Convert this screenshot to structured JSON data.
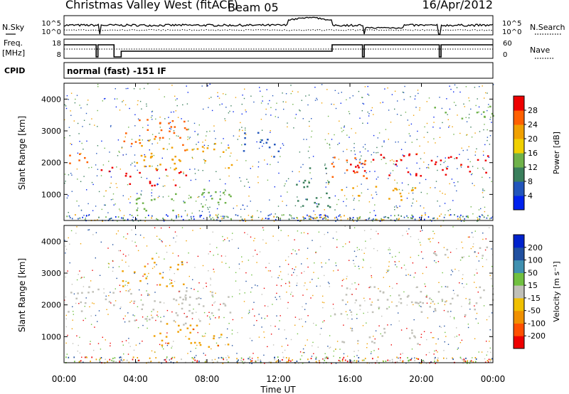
{
  "header": {
    "station": "Christmas Valley West (fitACF)",
    "beam": "Beam 05",
    "date": "16/Apr/2012"
  },
  "noise_panel": {
    "left_label": "N.Sky",
    "right_label": "N.Search",
    "left_ticks": [
      "10^5",
      "10^0"
    ],
    "right_ticks": [
      "10^5",
      "10^0"
    ]
  },
  "freq_panel": {
    "left_label": "Freq.",
    "left_unit": "[MHz]",
    "right_label": "Nave",
    "left_ticks": [
      "18",
      "8"
    ],
    "right_ticks": [
      "60",
      "0"
    ]
  },
  "cpid_panel": {
    "label": "CPID",
    "text": "normal (fast) -151 IF"
  },
  "chart_data": [
    {
      "type": "heatmap",
      "name": "power",
      "ylabel": "Slant Range [km]",
      "y_ticks": [
        1000,
        2000,
        3000,
        4000
      ],
      "ylim": [
        180,
        4500
      ],
      "xlim": [
        0,
        24
      ],
      "colorbar": {
        "label": "Power [dB]",
        "ticks": [
          "4",
          "8",
          "12",
          "16",
          "20",
          "24",
          "28"
        ],
        "colors": [
          "#0022ee",
          "#2255bb",
          "#3a7f5c",
          "#6fb24a",
          "#f0d000",
          "#f0a000",
          "#ff6000",
          "#ee0000"
        ]
      },
      "bands": [
        {
          "x0": 0.0,
          "x1": 1.8,
          "y0": 1850,
          "y1": 2300,
          "c": "#ff6000"
        },
        {
          "x0": 1.9,
          "x1": 2.8,
          "y0": 1700,
          "y1": 2200,
          "c": "#ee0000"
        },
        {
          "x0": 3.2,
          "x1": 6.8,
          "y0": 1300,
          "y1": 1900,
          "c": "#ee0000"
        },
        {
          "x0": 3.3,
          "x1": 7.0,
          "y0": 2400,
          "y1": 3400,
          "c": "#ff6000"
        },
        {
          "x0": 4.0,
          "x1": 9.5,
          "y0": 1800,
          "y1": 2800,
          "c": "#f0a000"
        },
        {
          "x0": 4.0,
          "x1": 9.5,
          "y0": 500,
          "y1": 1200,
          "c": "#6fb24a"
        },
        {
          "x0": 10.0,
          "x1": 12.0,
          "y0": 2200,
          "y1": 3100,
          "c": "#2255bb"
        },
        {
          "x0": 12.8,
          "x1": 15.0,
          "y0": 600,
          "y1": 1900,
          "c": "#3a7f5c"
        },
        {
          "x0": 14.8,
          "x1": 17.0,
          "y0": 1500,
          "y1": 2300,
          "c": "#ff6000"
        },
        {
          "x0": 15.5,
          "x1": 20.0,
          "y0": 800,
          "y1": 1300,
          "c": "#f0a000"
        },
        {
          "x0": 16.0,
          "x1": 24.0,
          "y0": 1600,
          "y1": 2300,
          "c": "#ee0000"
        },
        {
          "x0": 20.5,
          "x1": 24.0,
          "y0": 3400,
          "y1": 3800,
          "c": "#6fb24a"
        }
      ]
    },
    {
      "type": "heatmap",
      "name": "velocity",
      "ylabel": "Slant Range [km]",
      "y_ticks": [
        1000,
        2000,
        3000,
        4000
      ],
      "ylim": [
        180,
        4500
      ],
      "xlim": [
        0,
        24
      ],
      "xlabel": "Time UT",
      "x_ticks": [
        "00:00",
        "04:00",
        "08:00",
        "12:00",
        "16:00",
        "20:00",
        "00:00"
      ],
      "colorbar": {
        "label": "Velocity [m s⁻¹]",
        "ticks": [
          "-200",
          "-100",
          "-50",
          "-15",
          "15",
          "50",
          "100",
          "200"
        ],
        "colors": [
          "#ee0000",
          "#ff5000",
          "#f09000",
          "#f0c000",
          "#c0c0b8",
          "#70c040",
          "#4090b0",
          "#2050a0",
          "#0022cc"
        ]
      },
      "bands": [
        {
          "x0": 0.0,
          "x1": 2.8,
          "y0": 1800,
          "y1": 2600,
          "c": "#c0c0b8"
        },
        {
          "x0": 3.2,
          "x1": 6.8,
          "y0": 2600,
          "y1": 3500,
          "c": "#f0a000"
        },
        {
          "x0": 3.2,
          "x1": 9.5,
          "y0": 1400,
          "y1": 2500,
          "c": "#c0c0b8"
        },
        {
          "x0": 5.0,
          "x1": 9.5,
          "y0": 700,
          "y1": 1500,
          "c": "#f0a000"
        },
        {
          "x0": 15.0,
          "x1": 24.0,
          "y0": 1700,
          "y1": 2600,
          "c": "#c0c0b8"
        },
        {
          "x0": 15.5,
          "x1": 20.0,
          "y0": 800,
          "y1": 1300,
          "c": "#c0c0b8"
        },
        {
          "x0": 20.5,
          "x1": 24.0,
          "y0": 3500,
          "y1": 3900,
          "c": "#c0c0b8"
        }
      ]
    }
  ]
}
